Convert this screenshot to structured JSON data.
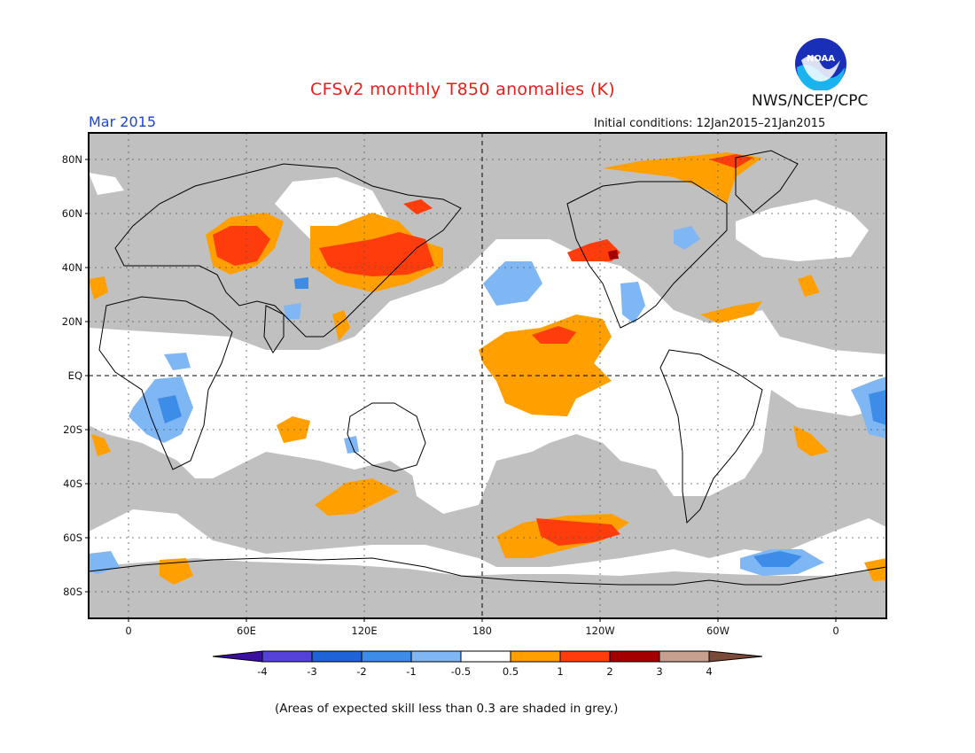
{
  "header": {
    "title": "CFSv2 monthly T850 anomalies (K)",
    "org": "NWS/NCEP/CPC",
    "logo_text": "NOAA",
    "month": "Mar 2015",
    "initial_conditions": "Initial conditions: 12Jan2015–21Jan2015"
  },
  "map": {
    "projection": "equirectangular",
    "center_longitude": "180",
    "lat_labels": [
      "80N",
      "60N",
      "40N",
      "20N",
      "EQ",
      "20S",
      "40S",
      "60S",
      "80S"
    ],
    "lon_labels": [
      "0",
      "60E",
      "120E",
      "180",
      "120W",
      "60W",
      "0"
    ],
    "colors": {
      "grey_low_skill": "#c0c0c0",
      "neutral": "#ffffff",
      "warm_0_5_1": "#ff9f00",
      "warm_1_2": "#ff3c0c",
      "warm_2_3": "#a50000",
      "cool_m1_m0_5": "#7fb6f4",
      "cool_m2_m1": "#3d8de8"
    }
  },
  "colorbar": {
    "labels": [
      "-4",
      "-3",
      "-2",
      "-1",
      "-0.5",
      "0.5",
      "1",
      "2",
      "3",
      "4"
    ],
    "colors": [
      "#3b0fa0",
      "#5542d8",
      "#1e64d8",
      "#3d8de8",
      "#7fb6f4",
      "#ffffff",
      "#ff9f00",
      "#ff3c0c",
      "#a50000",
      "#c8a090",
      "#7a4a3a"
    ]
  },
  "note": "(Areas of expected skill less than 0.3 are shaded in grey.)"
}
